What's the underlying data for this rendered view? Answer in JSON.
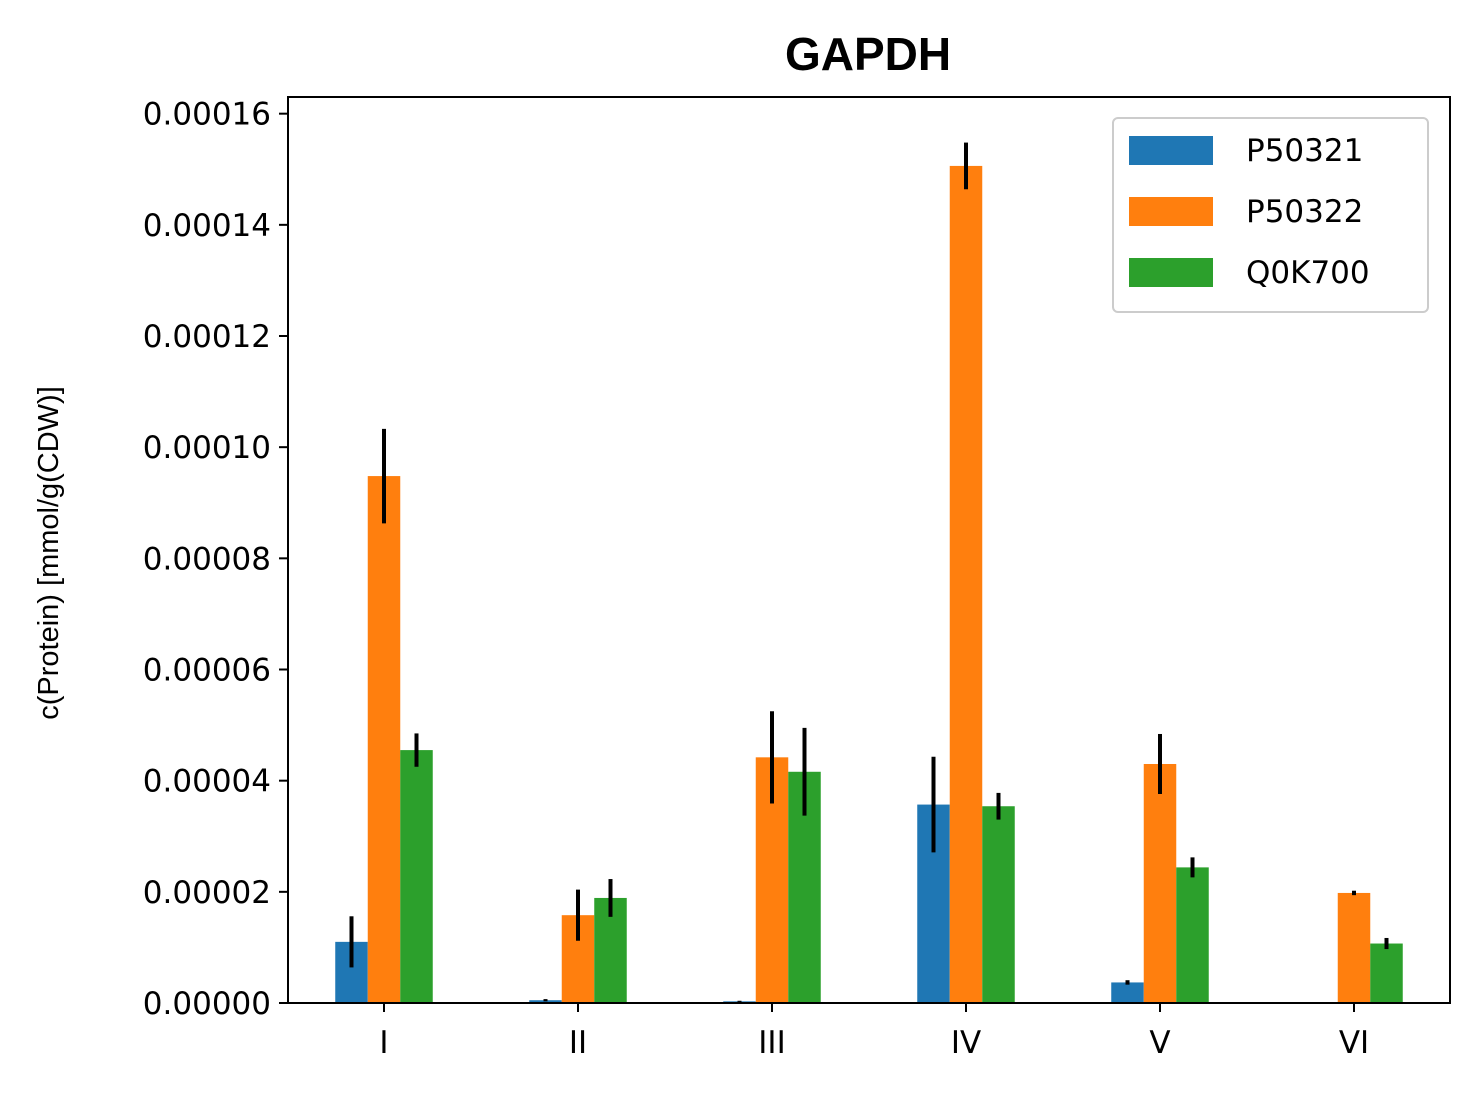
{
  "chart_data": {
    "type": "bar",
    "title": "GAPDH",
    "xlabel": "",
    "ylabel": "c(Protein) [mmol/g(CDW)]",
    "categories": [
      "I",
      "II",
      "III",
      "IV",
      "V",
      "VI"
    ],
    "ylim": [
      0,
      0.000163
    ],
    "yticks": [
      "0.00000",
      "0.00002",
      "0.00004",
      "0.00006",
      "0.00008",
      "0.00010",
      "0.00012",
      "0.00014",
      "0.00016"
    ],
    "ytick_values": [
      0,
      2e-05,
      4e-05,
      6e-05,
      8e-05,
      0.0001,
      0.00012,
      0.00014,
      0.00016
    ],
    "grid": false,
    "legend_position": "top-right",
    "series": [
      {
        "name": "P50321",
        "color": "#1f77b4",
        "values": [
          1.1e-05,
          5e-07,
          3e-07,
          3.57e-05,
          3.7e-06,
          0
        ],
        "errors": [
          4.6e-06,
          2e-07,
          1e-07,
          8.6e-06,
          4e-07,
          0
        ]
      },
      {
        "name": "P50322",
        "color": "#ff7f0e",
        "values": [
          9.48e-05,
          1.58e-05,
          4.42e-05,
          0.0001506,
          4.3e-05,
          1.98e-05
        ],
        "errors": [
          8.5e-06,
          4.6e-06,
          8.3e-06,
          4.2e-06,
          5.4e-06,
          4e-07
        ]
      },
      {
        "name": "Q0K700",
        "color": "#2ca02c",
        "values": [
          4.55e-05,
          1.89e-05,
          4.16e-05,
          3.54e-05,
          2.44e-05,
          1.07e-05
        ],
        "errors": [
          3e-06,
          3.4e-06,
          7.9e-06,
          2.4e-06,
          1.8e-06,
          1e-06
        ]
      }
    ]
  }
}
